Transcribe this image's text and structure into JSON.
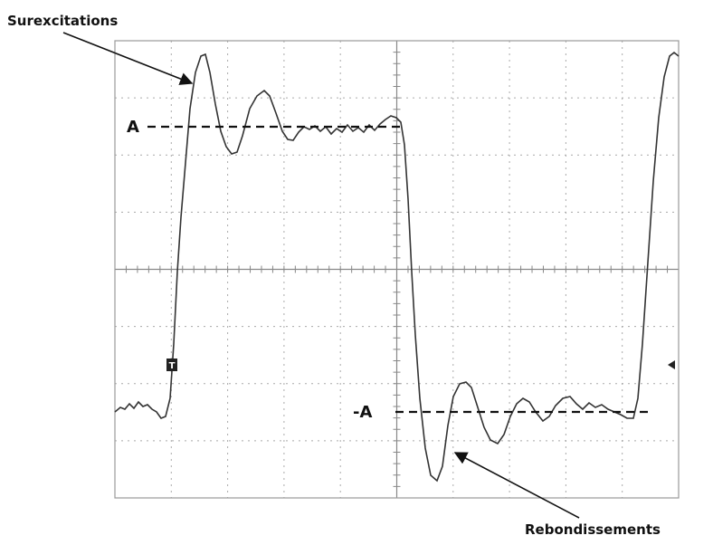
{
  "annotations": {
    "overshoot": "Surexcitations",
    "ringing": "Rebondissements"
  },
  "levels": {
    "high": "A",
    "low": "-A"
  },
  "trigger_marker": "T"
}
